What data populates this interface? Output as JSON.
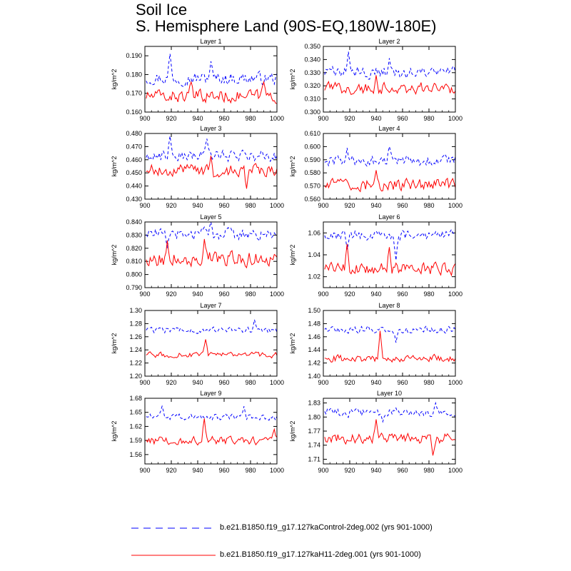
{
  "title": {
    "line1": "Soil Ice",
    "line2": "S. Hemisphere Land (90S-EQ,180W-180E)"
  },
  "legend": [
    {
      "label": "b.e21.B1850.f19_g17.127kaControl-2deg.002 (yrs 901-1000)",
      "color": "#0000ff",
      "style": "dashed"
    },
    {
      "label": "b.e21.B1850.f19_g17.127kaH11-2deg.001 (yrs 901-1000)",
      "color": "#ff0000",
      "style": "solid"
    }
  ],
  "chart_data": [
    {
      "type": "line",
      "title": "Layer 1",
      "xlabel": "",
      "ylabel": "kg/m^2",
      "xlim": [
        900,
        1000
      ],
      "ylim": [
        0.16,
        0.195
      ],
      "xticks": [
        "900",
        "920",
        "940",
        "960",
        "980",
        "1000"
      ],
      "yticks": [
        "0.160",
        "0.170",
        "0.180",
        "0.190"
      ],
      "yvals": [
        0.16,
        0.17,
        0.18,
        0.19
      ],
      "series": [
        {
          "name": "Control",
          "color": "#0000ff",
          "dash": true,
          "base": 0.178,
          "amp": 0.003,
          "spikes": [
            [
              919,
              0.191
            ],
            [
              950,
              0.187
            ]
          ]
        },
        {
          "name": "H11",
          "color": "#ff0000",
          "dash": false,
          "base": 0.1685,
          "amp": 0.003,
          "spikes": [
            [
              935,
              0.176
            ],
            [
              990,
              0.176
            ]
          ]
        }
      ]
    },
    {
      "type": "line",
      "title": "Layer 2",
      "xlabel": "",
      "ylabel": "kg/m^2",
      "xlim": [
        900,
        1000
      ],
      "ylim": [
        0.3,
        0.35
      ],
      "xticks": [
        "900",
        "920",
        "940",
        "960",
        "980",
        "1000"
      ],
      "yticks": [
        "0.300",
        "0.310",
        "0.320",
        "0.330",
        "0.340",
        "0.350"
      ],
      "yvals": [
        0.3,
        0.31,
        0.32,
        0.33,
        0.34,
        0.35
      ],
      "series": [
        {
          "name": "Control",
          "color": "#0000ff",
          "dash": true,
          "base": 0.33,
          "amp": 0.004,
          "spikes": [
            [
              919,
              0.346
            ],
            [
              950,
              0.341
            ]
          ]
        },
        {
          "name": "H11",
          "color": "#ff0000",
          "dash": false,
          "base": 0.318,
          "amp": 0.004,
          "spikes": [
            [
              940,
              0.328
            ]
          ]
        }
      ]
    },
    {
      "type": "line",
      "title": "Layer 3",
      "xlabel": "",
      "ylabel": "kg/m^2",
      "xlim": [
        900,
        1000
      ],
      "ylim": [
        0.43,
        0.48
      ],
      "xticks": [
        "900",
        "920",
        "940",
        "960",
        "980",
        "1000"
      ],
      "yticks": [
        "0.430",
        "0.440",
        "0.450",
        "0.460",
        "0.470",
        "0.480"
      ],
      "yvals": [
        0.43,
        0.44,
        0.45,
        0.46,
        0.47,
        0.48
      ],
      "series": [
        {
          "name": "Control",
          "color": "#0000ff",
          "dash": true,
          "base": 0.463,
          "amp": 0.004,
          "spikes": [
            [
              919,
              0.478
            ],
            [
              947,
              0.476
            ]
          ]
        },
        {
          "name": "H11",
          "color": "#ff0000",
          "dash": false,
          "base": 0.452,
          "amp": 0.004,
          "spikes": [
            [
              977,
              0.438
            ],
            [
              950,
              0.463
            ]
          ]
        }
      ]
    },
    {
      "type": "line",
      "title": "Layer 4",
      "xlabel": "",
      "ylabel": "kg/m^2",
      "xlim": [
        900,
        1000
      ],
      "ylim": [
        0.56,
        0.61
      ],
      "xticks": [
        "900",
        "920",
        "940",
        "960",
        "980",
        "1000"
      ],
      "yticks": [
        "0.560",
        "0.570",
        "0.580",
        "0.590",
        "0.600",
        "0.610"
      ],
      "yvals": [
        0.56,
        0.57,
        0.58,
        0.59,
        0.6,
        0.61
      ],
      "series": [
        {
          "name": "Control",
          "color": "#0000ff",
          "dash": true,
          "base": 0.589,
          "amp": 0.004,
          "spikes": [
            [
              918,
              0.599
            ],
            [
              950,
              0.6
            ]
          ]
        },
        {
          "name": "H11",
          "color": "#ff0000",
          "dash": false,
          "base": 0.571,
          "amp": 0.004,
          "spikes": [
            [
              940,
              0.582
            ]
          ]
        }
      ]
    },
    {
      "type": "line",
      "title": "Layer 5",
      "xlabel": "",
      "ylabel": "kg/m^2",
      "xlim": [
        900,
        1000
      ],
      "ylim": [
        0.79,
        0.84
      ],
      "xticks": [
        "900",
        "920",
        "940",
        "960",
        "980",
        "1000"
      ],
      "yticks": [
        "0.790",
        "0.800",
        "0.810",
        "0.820",
        "0.830",
        "0.840"
      ],
      "yvals": [
        0.79,
        0.8,
        0.81,
        0.82,
        0.83,
        0.84
      ],
      "series": [
        {
          "name": "Control",
          "color": "#0000ff",
          "dash": true,
          "base": 0.831,
          "amp": 0.004,
          "spikes": [
            [
              917,
              0.82
            ],
            [
              950,
              0.84
            ]
          ]
        },
        {
          "name": "H11",
          "color": "#ff0000",
          "dash": false,
          "base": 0.812,
          "amp": 0.005,
          "spikes": [
            [
              917,
              0.826
            ],
            [
              945,
              0.827
            ]
          ]
        }
      ]
    },
    {
      "type": "line",
      "title": "Layer 6",
      "xlabel": "",
      "ylabel": "kg/m^2",
      "xlim": [
        900,
        1000
      ],
      "ylim": [
        1.01,
        1.07
      ],
      "xticks": [
        "900",
        "920",
        "940",
        "960",
        "980",
        "1000"
      ],
      "yticks": [
        "1.02",
        "1.04",
        "1.06"
      ],
      "yvals": [
        1.02,
        1.04,
        1.06
      ],
      "series": [
        {
          "name": "Control",
          "color": "#0000ff",
          "dash": true,
          "base": 1.058,
          "amp": 0.004,
          "spikes": [
            [
              918,
              1.045
            ],
            [
              955,
              1.035
            ]
          ]
        },
        {
          "name": "H11",
          "color": "#ff0000",
          "dash": false,
          "base": 1.027,
          "amp": 0.005,
          "spikes": [
            [
              918,
              1.05
            ],
            [
              950,
              1.047
            ]
          ]
        }
      ]
    },
    {
      "type": "line",
      "title": "Layer 7",
      "xlabel": "",
      "ylabel": "kg/m^2",
      "xlim": [
        900,
        1000
      ],
      "ylim": [
        1.2,
        1.3
      ],
      "xticks": [
        "900",
        "920",
        "940",
        "960",
        "980",
        "1000"
      ],
      "yticks": [
        "1.20",
        "1.22",
        "1.24",
        "1.26",
        "1.28",
        "1.30"
      ],
      "yvals": [
        1.2,
        1.22,
        1.24,
        1.26,
        1.28,
        1.3
      ],
      "series": [
        {
          "name": "Control",
          "color": "#0000ff",
          "dash": true,
          "base": 1.27,
          "amp": 0.004,
          "spikes": [
            [
              983,
              1.286
            ]
          ]
        },
        {
          "name": "H11",
          "color": "#ff0000",
          "dash": false,
          "base": 1.232,
          "amp": 0.004,
          "spikes": [
            [
              946,
              1.256
            ]
          ]
        }
      ]
    },
    {
      "type": "line",
      "title": "Layer 8",
      "xlabel": "",
      "ylabel": "kg/m^2",
      "xlim": [
        900,
        1000
      ],
      "ylim": [
        1.4,
        1.5
      ],
      "xticks": [
        "900",
        "920",
        "940",
        "960",
        "980",
        "1000"
      ],
      "yticks": [
        "1.40",
        "1.42",
        "1.44",
        "1.46",
        "1.48",
        "1.50"
      ],
      "yvals": [
        1.4,
        1.42,
        1.44,
        1.46,
        1.48,
        1.5
      ],
      "series": [
        {
          "name": "Control",
          "color": "#0000ff",
          "dash": true,
          "base": 1.471,
          "amp": 0.005,
          "spikes": [
            [
              955,
              1.451
            ]
          ]
        },
        {
          "name": "H11",
          "color": "#ff0000",
          "dash": false,
          "base": 1.427,
          "amp": 0.005,
          "spikes": [
            [
              943,
              1.469
            ]
          ]
        }
      ]
    },
    {
      "type": "line",
      "title": "Layer 9",
      "xlabel": "",
      "ylabel": "kg/m^2",
      "xlim": [
        900,
        1000
      ],
      "ylim": [
        1.54,
        1.68
      ],
      "xticks": [
        "900",
        "920",
        "940",
        "960",
        "980",
        "1000"
      ],
      "yticks": [
        "1.56",
        "1.59",
        "1.62",
        "1.65",
        "1.68"
      ],
      "yvals": [
        1.56,
        1.59,
        1.62,
        1.65,
        1.68
      ],
      "series": [
        {
          "name": "Control",
          "color": "#0000ff",
          "dash": true,
          "base": 1.64,
          "amp": 0.006,
          "spikes": [
            [
              913,
              1.663
            ],
            [
              975,
              1.663
            ]
          ]
        },
        {
          "name": "H11",
          "color": "#ff0000",
          "dash": false,
          "base": 1.59,
          "amp": 0.008,
          "spikes": [
            [
              945,
              1.637
            ],
            [
              998,
              1.614
            ]
          ]
        }
      ]
    },
    {
      "type": "line",
      "title": "Layer 10",
      "xlabel": "",
      "ylabel": "kg/m^2",
      "xlim": [
        900,
        1000
      ],
      "ylim": [
        1.7,
        1.84
      ],
      "xticks": [
        "900",
        "920",
        "940",
        "960",
        "980",
        "1000"
      ],
      "yticks": [
        "1.71",
        "1.74",
        "1.77",
        "1.80",
        "1.83"
      ],
      "yvals": [
        1.71,
        1.74,
        1.77,
        1.8,
        1.83
      ],
      "series": [
        {
          "name": "Control",
          "color": "#0000ff",
          "dash": true,
          "base": 1.81,
          "amp": 0.008,
          "spikes": [
            [
              945,
              1.79
            ],
            [
              985,
              1.83
            ]
          ]
        },
        {
          "name": "H11",
          "color": "#ff0000",
          "dash": false,
          "base": 1.755,
          "amp": 0.01,
          "spikes": [
            [
              940,
              1.795
            ],
            [
              983,
              1.718
            ]
          ]
        }
      ]
    }
  ]
}
